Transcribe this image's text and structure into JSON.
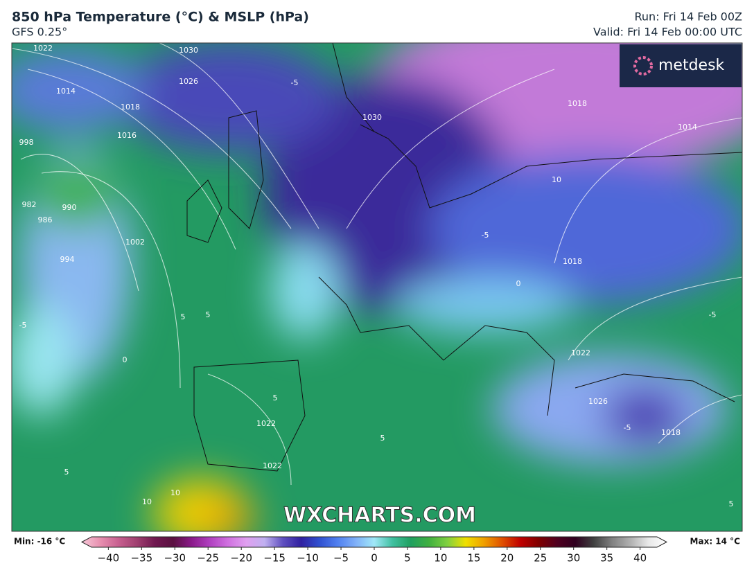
{
  "header": {
    "title": "850 hPa Temperature (°C) & MSLP (hPa)",
    "model": "GFS 0.25°",
    "run": "Run: Fri 14 Feb 00Z",
    "valid": "Valid: Fri 14 Feb 00:00 UTC"
  },
  "logo": "metdesk",
  "watermark": "WXCHARTS.COM",
  "map_labels": [
    "1022",
    "1030",
    "1026",
    "1014",
    "1018",
    "1016",
    "998",
    "982",
    "986",
    "990",
    "994",
    "1002",
    "1030",
    "1018",
    "1014",
    "10",
    "-5",
    "-5",
    "0",
    "1018",
    "-5",
    "5",
    "5",
    "-5",
    "1022",
    "1026",
    "1018",
    "1022",
    "5",
    "5",
    "-5",
    "1022",
    "5",
    "10",
    "10",
    "5",
    "0"
  ],
  "colorbar": {
    "min_label": "Min: -16 °C",
    "max_label": "Max: 14 °C",
    "range": [
      -44,
      44
    ],
    "colors": [
      "#f7c8d8",
      "#e890b0",
      "#c86090",
      "#a04070",
      "#701850",
      "#5a1040",
      "#8a1a8a",
      "#b040c0",
      "#d070e0",
      "#e0a0f0",
      "#c0b0f0",
      "#6050c0",
      "#3020a0",
      "#3050d0",
      "#5080f0",
      "#80b0f8",
      "#a0e8f8",
      "#40c0a0",
      "#20a060",
      "#40b040",
      "#80d040",
      "#f0e000",
      "#f0a000",
      "#e05000",
      "#c00000",
      "#800000",
      "#500020",
      "#300020",
      "#404040",
      "#808080",
      "#b0b0b0",
      "#e8e8e8",
      "#ffffff"
    ],
    "ticks": [
      {
        "value": -40,
        "label": "−40"
      },
      {
        "value": -35,
        "label": "−35"
      },
      {
        "value": -30,
        "label": "−30"
      },
      {
        "value": -25,
        "label": "−25"
      },
      {
        "value": -20,
        "label": "−20"
      },
      {
        "value": -15,
        "label": "−15"
      },
      {
        "value": -10,
        "label": "−10"
      },
      {
        "value": -5,
        "label": "−5"
      },
      0,
      5,
      10,
      15,
      20,
      25,
      30,
      35,
      40
    ]
  }
}
